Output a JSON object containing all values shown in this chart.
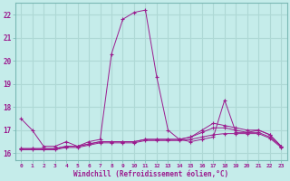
{
  "xlabel": "Windchill (Refroidissement éolien,°C)",
  "bg_color": "#c5ecea",
  "grid_color": "#aed8d5",
  "line_color": "#9b1b8e",
  "xlim": [
    -0.5,
    23.5
  ],
  "ylim": [
    15.7,
    22.5
  ],
  "xticks": [
    0,
    1,
    2,
    3,
    4,
    5,
    6,
    7,
    8,
    9,
    10,
    11,
    12,
    13,
    14,
    15,
    16,
    17,
    18,
    19,
    20,
    21,
    22,
    23
  ],
  "yticks": [
    16,
    17,
    18,
    19,
    20,
    21,
    22
  ],
  "series1_x": [
    0,
    1,
    2,
    3,
    4,
    5,
    6,
    7,
    8,
    9,
    10,
    11,
    12,
    13,
    14,
    15,
    16,
    17,
    18,
    19,
    20,
    21,
    22,
    23
  ],
  "series1_y": [
    17.5,
    17.0,
    16.3,
    16.3,
    16.5,
    16.3,
    16.5,
    16.6,
    20.3,
    21.8,
    22.1,
    22.2,
    19.3,
    17.0,
    16.6,
    16.5,
    16.6,
    16.7,
    18.3,
    16.9,
    16.9,
    17.0,
    16.8,
    16.3
  ],
  "series2_x": [
    0,
    1,
    2,
    3,
    4,
    5,
    6,
    7,
    8,
    9,
    10,
    11,
    12,
    13,
    14,
    15,
    16,
    17,
    18,
    19,
    20,
    21,
    22,
    23
  ],
  "series2_y": [
    16.2,
    16.2,
    16.2,
    16.2,
    16.3,
    16.3,
    16.4,
    16.5,
    16.5,
    16.5,
    16.5,
    16.6,
    16.6,
    16.6,
    16.6,
    16.7,
    17.0,
    17.3,
    17.2,
    17.1,
    17.0,
    17.0,
    16.8,
    16.3
  ],
  "series3_x": [
    0,
    1,
    2,
    3,
    4,
    5,
    6,
    7,
    8,
    9,
    10,
    11,
    12,
    13,
    14,
    15,
    16,
    17,
    18,
    19,
    20,
    21,
    22,
    23
  ],
  "series3_y": [
    16.2,
    16.2,
    16.2,
    16.2,
    16.3,
    16.3,
    16.4,
    16.5,
    16.5,
    16.5,
    16.5,
    16.6,
    16.6,
    16.6,
    16.6,
    16.7,
    16.9,
    17.1,
    17.1,
    17.0,
    16.9,
    16.9,
    16.7,
    16.3
  ],
  "series4_x": [
    0,
    1,
    2,
    3,
    4,
    5,
    6,
    7,
    8,
    9,
    10,
    11,
    12,
    13,
    14,
    15,
    16,
    17,
    18,
    19,
    20,
    21,
    22,
    23
  ],
  "series4_y": [
    16.15,
    16.15,
    16.15,
    16.15,
    16.25,
    16.25,
    16.35,
    16.45,
    16.45,
    16.45,
    16.45,
    16.55,
    16.55,
    16.55,
    16.55,
    16.6,
    16.7,
    16.8,
    16.85,
    16.85,
    16.85,
    16.85,
    16.65,
    16.25
  ]
}
